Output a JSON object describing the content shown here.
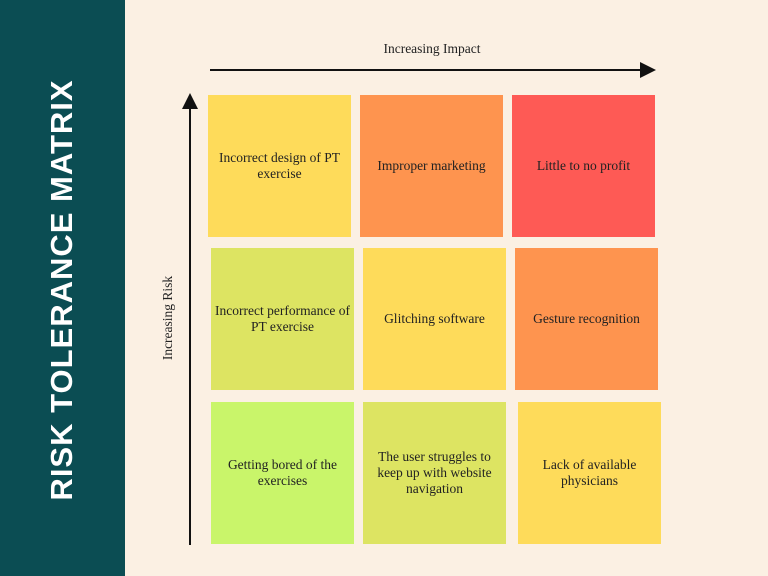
{
  "title": "RISK TOLERANCE MATRIX",
  "x_axis_label": "Increasing Impact",
  "y_axis_label": "Increasing Risk",
  "rows": [
    [
      "Incorrect design of PT exercise",
      "Improper marketing",
      "Little to no profit"
    ],
    [
      "Incorrect performance of PT exercise",
      "Glitching software",
      "Gesture recognition"
    ],
    [
      "Getting bored of the exercises",
      "The user struggles to keep up with website navigation",
      "Lack of available physicians"
    ]
  ]
}
